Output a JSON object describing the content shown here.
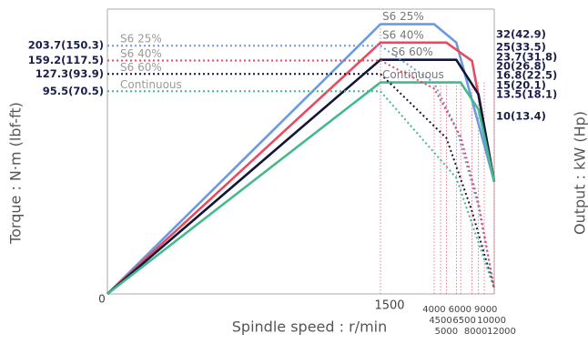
{
  "chart_data": {
    "type": "line",
    "x_label": "Spindle speed : r/min",
    "y_label": "Output : kW (Hp)",
    "y2_label": "Torque : N·m (lbf-ft)",
    "xlim": [
      0,
      12000
    ],
    "xticks": [
      0,
      1500,
      4000,
      4500,
      5000,
      6000,
      6500,
      8000,
      9000,
      10000,
      12000
    ],
    "ylim": [
      0,
      26.4
    ],
    "y2lim": [
      3.3,
      374
    ],
    "y2log": true,
    "y2ticks": [
      {
        "value": 203.7,
        "label": "203.7(150.3)"
      },
      {
        "value": 159.2,
        "label": "159.2(117.5)"
      },
      {
        "value": 127.3,
        "label": "127.3(93.9)"
      },
      {
        "value": 95.5,
        "label": "95.5(70.5)"
      }
    ],
    "annotations": [
      "32(42.9)",
      "25(33.5)",
      "23.7(31.8)",
      "20(26.8)",
      "16.8(22.5)",
      "15(20.1)",
      "13.5(18.1)",
      "10(13.4)"
    ],
    "series": [
      {
        "name": "S6 25%",
        "color": "#6a9be0",
        "x": [
          0,
          1500,
          4000,
          6000,
          12000
        ],
        "values": [
          0,
          25,
          25,
          23.3,
          10.4
        ]
      },
      {
        "name": "S6 40%",
        "color": "#e84a5f",
        "x": [
          0,
          1500,
          5000,
          8000,
          12000
        ],
        "values": [
          0,
          23.3,
          23.3,
          21.6,
          10.4
        ]
      },
      {
        "name": "S6 60%",
        "color": "#121638",
        "x": [
          0,
          1500,
          6000,
          9000,
          12000
        ],
        "values": [
          0,
          21.7,
          21.7,
          18.5,
          10.4
        ]
      },
      {
        "name": "Continuous",
        "color": "#45b98e",
        "x": [
          0,
          1500,
          6500,
          9000,
          12000
        ],
        "values": [
          0,
          19.6,
          19.6,
          17.1,
          10.4
        ]
      },
      {
        "axis": "y2",
        "color": "#6a9be0",
        "x": [
          0,
          1500,
          4000,
          6000,
          9000,
          12000
        ],
        "values": [
          203.7,
          203.7,
          110,
          52,
          14,
          3.6
        ]
      },
      {
        "axis": "y2",
        "color": "#e84a5f",
        "x": [
          0,
          1500,
          4000,
          6500,
          9000,
          12000
        ],
        "values": [
          159.2,
          159.2,
          100,
          45,
          15,
          3.6
        ]
      },
      {
        "axis": "y2",
        "color": "#121638",
        "x": [
          0,
          1500,
          5000,
          8000,
          12000
        ],
        "values": [
          127.3,
          127.3,
          44,
          13,
          3.6
        ]
      },
      {
        "axis": "y2",
        "color": "#45b98e",
        "x": [
          0,
          1500,
          6000,
          12000
        ],
        "values": [
          95.5,
          95.5,
          22.7,
          3.6
        ]
      }
    ]
  }
}
